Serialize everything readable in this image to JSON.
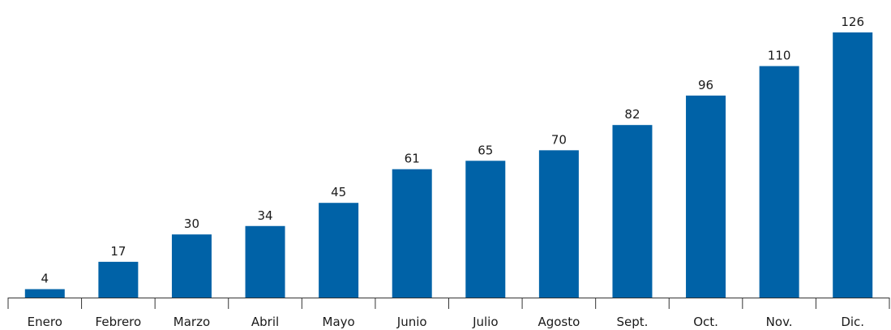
{
  "chart_data": {
    "type": "bar",
    "categories": [
      "Enero",
      "Febrero",
      "Marzo",
      "Abril",
      "Mayo",
      "Junio",
      "Julio",
      "Agosto",
      "Sept.",
      "Oct.",
      "Nov.",
      "Dic."
    ],
    "values": [
      4,
      17,
      30,
      34,
      45,
      61,
      65,
      70,
      82,
      96,
      110,
      126
    ],
    "title": "",
    "xlabel": "",
    "ylabel": "",
    "ylim": [
      0,
      126
    ],
    "grid": false,
    "legend": "none",
    "data_labels": true,
    "bar_color": "#0062A7",
    "axis_color": "#333333"
  }
}
